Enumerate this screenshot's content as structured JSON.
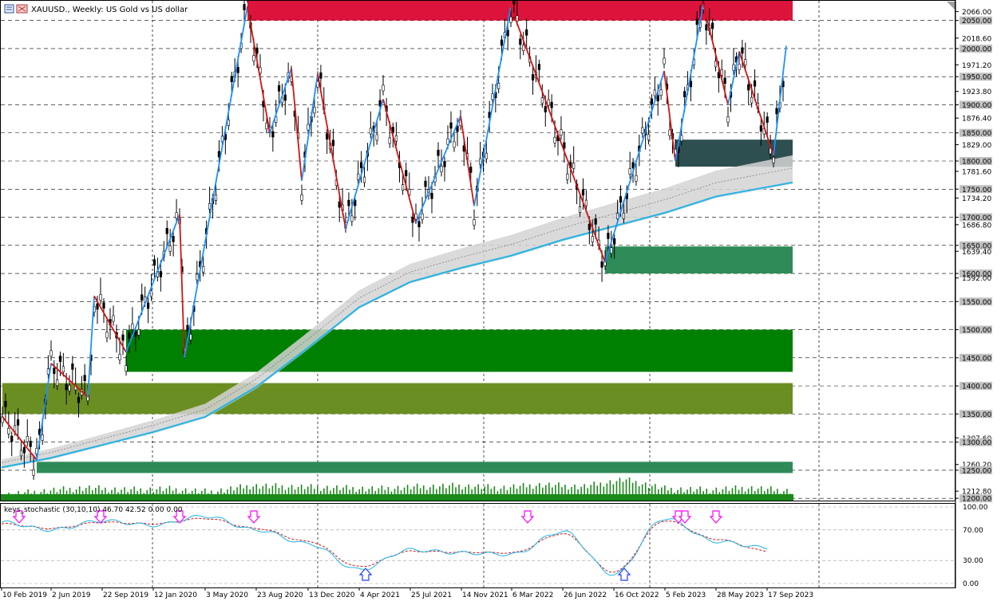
{
  "window": {
    "title_parts": [
      "XAUUSD.",
      "Weekly",
      "US Gold vs US dollar"
    ],
    "title": "XAUUSD., Weekly:  US Gold vs US dollar"
  },
  "indicator": {
    "label": "keys_stochastic (30,10,10) 46.70 42.52 0.00 0.00",
    "levels": [
      "100.00",
      "70.00",
      "30.00",
      "0.00"
    ],
    "level_values": [
      100,
      70,
      30,
      0
    ]
  },
  "colors": {
    "bull": "#1e90ff",
    "bear": "#d01515",
    "supply_zone": "#dc143c",
    "demand_zone_dark": "#2e4f4f",
    "demand_zone_green": "#2e8b57",
    "strong_zone": "#008000",
    "olive_zone": "#6b8e23",
    "ma_band": "#d3d3d3",
    "ma_line": "#1fb4e6",
    "stoch_main": "#1fb4e6",
    "stoch_signal": "#d01515",
    "arrow_down": "#ff00ff",
    "arrow_up": "#1e3cff",
    "volume": "#1a8a1a"
  },
  "price_axis": {
    "labels": [
      "2066.00",
      "2050.00",
      "2018.60",
      "2000.00",
      "1971.20",
      "1950.00",
      "1923.80",
      "1900.00",
      "1876.40",
      "1850.00",
      "1829.00",
      "1800.00",
      "1781.60",
      "1750.00",
      "1734.20",
      "1700.00",
      "1686.80",
      "1650.00",
      "1639.40",
      "1600.00",
      "1592.00",
      "1550.00",
      "1500.00",
      "1450.00",
      "1400.00",
      "1350.00",
      "1307.60",
      "1300.00",
      "1260.20",
      "1250.00",
      "1212.80",
      "1200.00"
    ],
    "range": [
      1196,
      2085
    ]
  },
  "time_axis": {
    "labels": [
      "10 Feb 2019",
      "2 Jun 2019",
      "22 Sep 2019",
      "12 Jan 2020",
      "3 May 2020",
      "23 Aug 2020",
      "13 Dec 2020",
      "4 Apr 2021",
      "25 Jul 2021",
      "14 Nov 2021",
      "6 Mar 2022",
      "26 Jun 2022",
      "16 Oct 2022",
      "5 Feb 2023",
      "28 May 2023",
      "17 Sep 2023"
    ]
  },
  "chart_data": [
    {
      "type": "line",
      "title": "XAUUSD., Weekly:  US Gold vs US dollar",
      "x": [
        "10 Feb 2019",
        "2 Jun 2019",
        "22 Sep 2019",
        "12 Jan 2020",
        "3 May 2020",
        "23 Aug 2020",
        "13 Dec 2020",
        "4 Apr 2021",
        "25 Jul 2021",
        "14 Nov 2021",
        "6 Mar 2022",
        "26 Jun 2022",
        "16 Oct 2022",
        "5 Feb 2023",
        "28 May 2023",
        "17 Sep 2023"
      ],
      "ylim": [
        1196,
        2085
      ],
      "grid": true,
      "series": [
        {
          "values": [
            1310,
            1285,
            1500,
            1555,
            1720,
            2070,
            1870,
            1680,
            1800,
            1850,
            2070,
            1700,
            1630,
            1900,
            1970,
            1945
          ]
        }
      ],
      "swings": [
        1345,
        1268,
        1440,
        1380,
        1560,
        1460,
        1705,
        1450,
        2075,
        1850,
        1965,
        1765,
        1955,
        1680,
        1910,
        1690,
        1880,
        1720,
        2075,
        1620,
        1960,
        1800,
        2080,
        1900,
        1995,
        1810,
        2005
      ],
      "ma_values": [
        1255,
        1272,
        1295,
        1318,
        1345,
        1398,
        1468,
        1540,
        1585,
        1610,
        1632,
        1660,
        1684,
        1708,
        1737,
        1762
      ],
      "zones": [
        {
          "low": 2050,
          "high": 2085
        },
        {
          "low": 1790,
          "high": 1838
        },
        {
          "low": 1600,
          "high": 1648
        },
        {
          "low": 1425,
          "high": 1500
        },
        {
          "low": 1350,
          "high": 1405
        },
        {
          "low": 1245,
          "high": 1265
        }
      ]
    },
    {
      "type": "line",
      "title": "keys_stochastic (30,10,10) 46.70 42.52 0.00 0.00",
      "ylim": [
        0,
        100
      ],
      "series": [
        {
          "values": [
            80,
            70,
            82,
            76,
            88,
            70,
            52,
            18,
            44,
            40,
            38,
            68,
            12,
            85,
            55,
            46.7
          ]
        },
        {
          "values": [
            78,
            72,
            80,
            78,
            85,
            72,
            55,
            22,
            42,
            41,
            40,
            65,
            15,
            82,
            58,
            42.52
          ]
        }
      ],
      "signals_down": [
        0,
        1,
        4,
        7,
        11,
        13,
        13,
        14
      ],
      "signals_up": [
        7,
        12
      ]
    },
    {
      "type": "bar",
      "title": "volume",
      "values": [
        0.2,
        0.4,
        0.55,
        0.45,
        0.5,
        0.35,
        0.65,
        0.6,
        0.55,
        0.5,
        0.6,
        0.65,
        0.55,
        0.7,
        0.6,
        0.95,
        0.5,
        0.45,
        0.55,
        0.4
      ]
    }
  ]
}
